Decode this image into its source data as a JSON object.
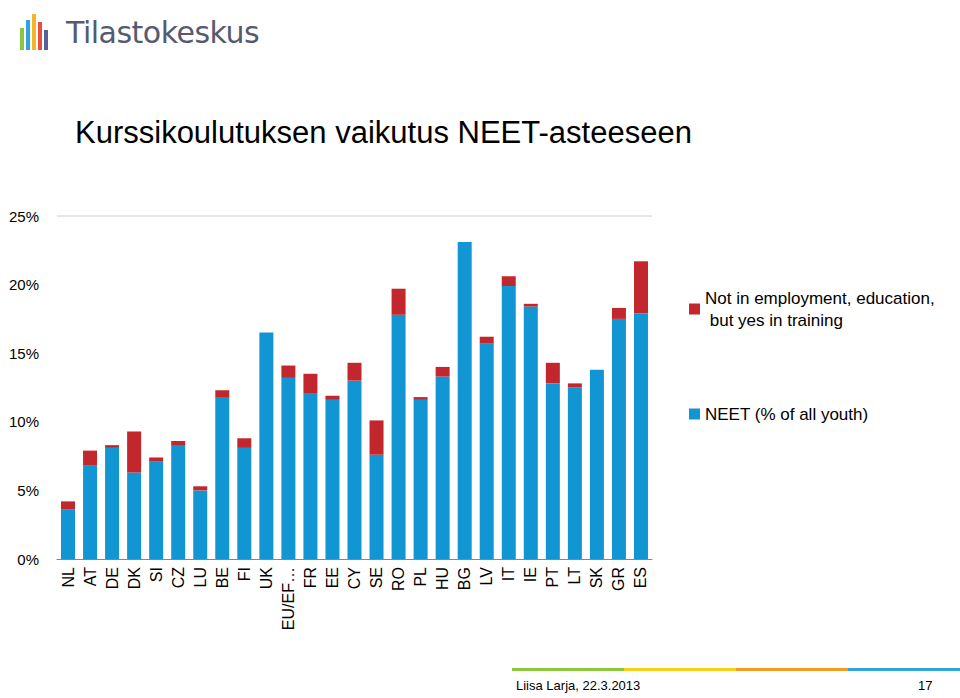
{
  "header": {
    "logo": "Tilastokeskus"
  },
  "footer": {
    "author": "Liisa Larja, 22.3.2013",
    "page": "17"
  },
  "chart_data": {
    "type": "bar",
    "title": "Kurssikoulutuksen vaikutus NEET-asteeseen",
    "categories": [
      "NL",
      "AT",
      "DE",
      "DK",
      "SI",
      "CZ",
      "LU",
      "BE",
      "FI",
      "UK",
      "EU/EF…",
      "FR",
      "EE",
      "CY",
      "SE",
      "RO",
      "PL",
      "HU",
      "BG",
      "LV",
      "IT",
      "IE",
      "PT",
      "LT",
      "SK",
      "GR",
      "ES"
    ],
    "series": [
      {
        "name": "NEET (% of all youth)",
        "color": "#1196d3",
        "values": [
          3.6,
          6.8,
          8.1,
          6.3,
          7.1,
          8.3,
          5.0,
          11.8,
          8.1,
          16.5,
          13.2,
          12.1,
          11.6,
          13.0,
          7.6,
          17.8,
          11.6,
          13.3,
          23.1,
          15.7,
          19.9,
          18.4,
          12.8,
          12.5,
          13.8,
          17.5,
          17.9
        ]
      },
      {
        "name": "Not in employment, education, but yes in training",
        "color": "#c1272d",
        "values": [
          0.6,
          1.1,
          0.2,
          3.0,
          0.3,
          0.3,
          0.3,
          0.5,
          0.7,
          0,
          0.9,
          1.4,
          0.3,
          1.3,
          2.5,
          1.9,
          0.2,
          0.7,
          0,
          0.5,
          0.7,
          0.2,
          1.5,
          0.3,
          0,
          0.8,
          3.8
        ]
      }
    ],
    "stacked": true,
    "ylim": [
      0,
      25
    ],
    "yticks": [
      {
        "value": 0,
        "label": "0%"
      },
      {
        "value": 5,
        "label": "5%"
      },
      {
        "value": 10,
        "label": "10%"
      },
      {
        "value": 15,
        "label": "15%"
      },
      {
        "value": 20,
        "label": "20%"
      },
      {
        "value": 25,
        "label": "25%"
      }
    ],
    "grid": false,
    "legend": "right"
  }
}
